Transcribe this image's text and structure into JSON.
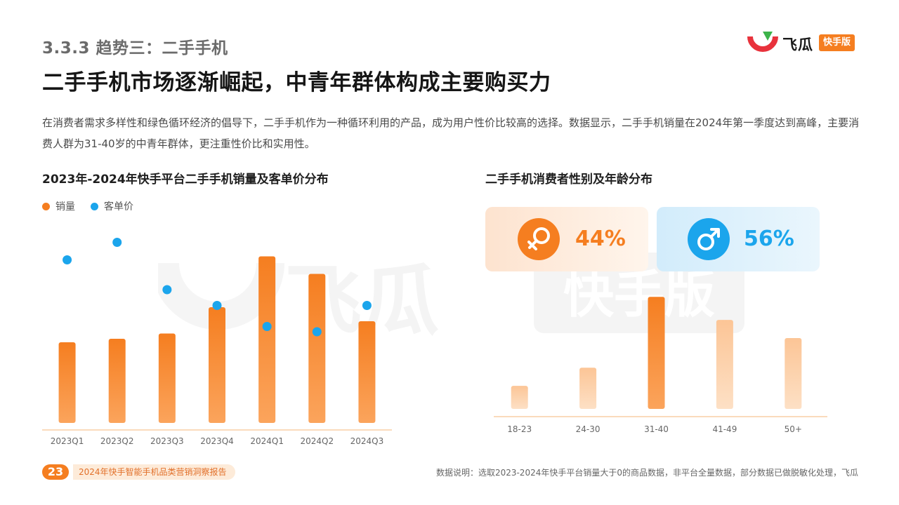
{
  "section_title": "3.3.3 趋势三：二手手机",
  "main_title": "二手手机市场逐渐崛起，中青年群体构成主要购买力",
  "description": "在消费者需求多样性和绿色循环经济的倡导下，二手手机作为一种循环利用的产品，成为用户性价比较高的选择。数据显示，二手手机销量在2024年第一季度达到高峰，主要消费人群为31-40岁的中青年群体，更注重性价比和实用性。",
  "logo": {
    "text": "飞瓜",
    "badge": "快手版"
  },
  "watermark": {
    "text": "飞瓜",
    "badge": "快手版"
  },
  "colors": {
    "accent": "#f57e20",
    "blue": "#1ba5ec",
    "light_orange": "#fdd3ac"
  },
  "footer": {
    "page_number": "23",
    "report_name": "2024年快手智能手机品类营销洞察报告",
    "footnote": "数据说明：选取2023-2024年快手平台销量大于0的商品数据，非平台全量数据，部分数据已做脱敏化处理，飞瓜"
  },
  "chart_data": [
    {
      "type": "bar",
      "title": "2023年-2024年快手平台二手手机销量及客单价分布",
      "categories": [
        "2023Q1",
        "2023Q2",
        "2023Q3",
        "2023Q4",
        "2024Q1",
        "2024Q2",
        "2024Q3"
      ],
      "series": [
        {
          "name": "销量",
          "type": "bar",
          "color": "#f57e20",
          "values": [
            46,
            48,
            51,
            66,
            95,
            85,
            58
          ]
        },
        {
          "name": "客单价",
          "type": "scatter",
          "color": "#1ba5ec",
          "values": [
            93,
            103,
            76,
            67,
            55,
            52,
            67
          ]
        }
      ],
      "ylim": [
        0,
        100
      ],
      "legend": "top-left",
      "grid": false
    },
    {
      "type": "bar",
      "title": "二手手机消费者性别及年龄分布",
      "gender": [
        {
          "label": "女",
          "icon": "female-icon",
          "percent": "44%"
        },
        {
          "label": "男",
          "icon": "male-icon",
          "percent": "56%"
        }
      ],
      "categories": [
        "18-23",
        "24-30",
        "31-40",
        "41-49",
        "50+"
      ],
      "values": [
        14,
        25,
        68,
        54,
        43
      ],
      "highlight_index": 2,
      "ylim": [
        0,
        100
      ],
      "grid": false
    }
  ]
}
